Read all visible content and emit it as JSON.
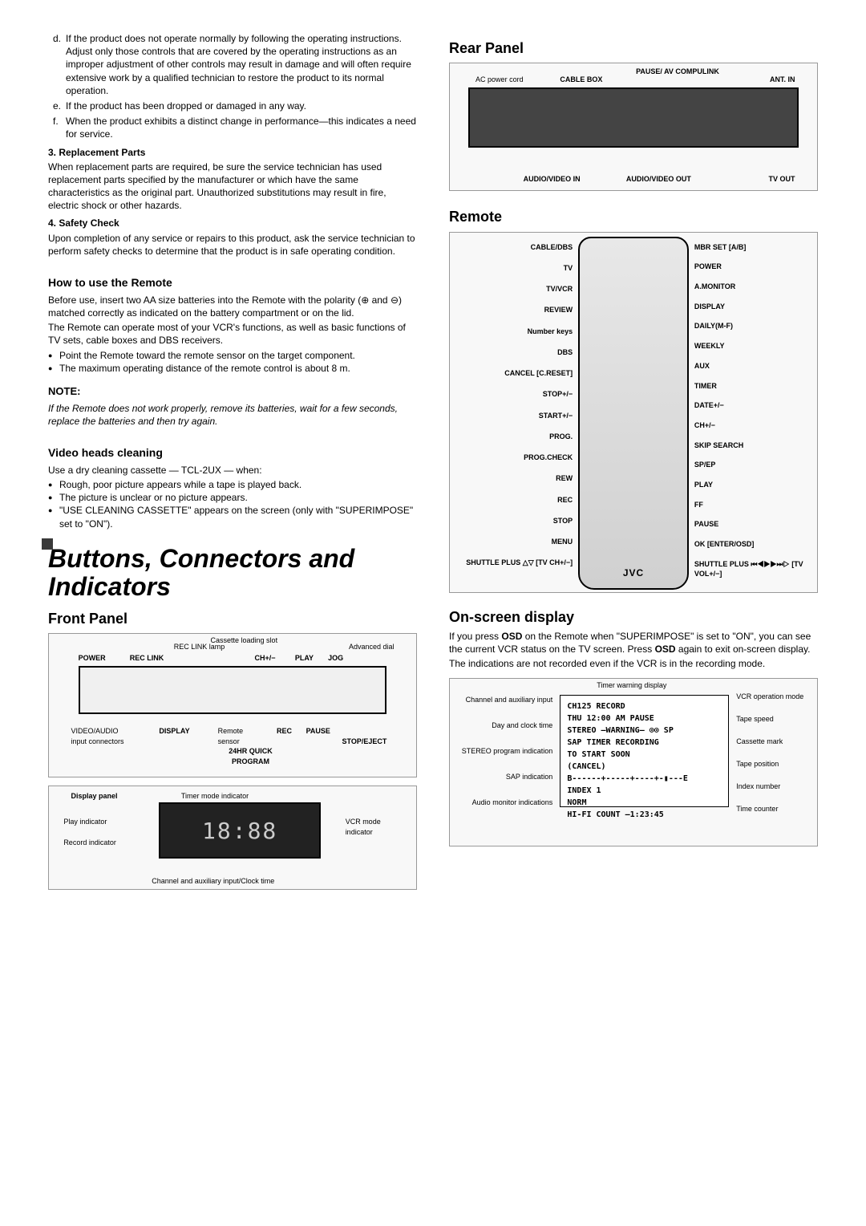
{
  "leftCol": {
    "item_d": "If the product does not operate normally by following the operating instructions. Adjust only those controls that are covered by the operating instructions as an improper adjustment of other controls may result in damage and will often require extensive work by a qualified technician to restore the product to its normal operation.",
    "item_e": "If the product has been dropped or damaged in any way.",
    "item_f": "When the product exhibits a distinct change in performance—this indicates a need for service.",
    "replacement_h": "3.  Replacement Parts",
    "replacement_p": "When replacement parts are required, be sure the service technician has used replacement parts specified by the manufacturer or which have the same characteristics as the original part. Unauthorized substitutions may result in fire, electric shock or other hazards.",
    "safety_h": "4.  Safety Check",
    "safety_p": "Upon completion of any service or repairs to this product, ask the service technician to perform safety checks to determine that the product is in safe operating condition.",
    "remote_h": "How to use the Remote",
    "remote_p1": "Before use, insert two AA size batteries into the Remote with the polarity (⊕ and ⊖) matched correctly as indicated on the battery compartment or on the lid.",
    "remote_p2": "The Remote can operate most of your VCR's functions, as well as basic functions of TV sets, cable boxes and DBS receivers.",
    "remote_b1": "Point the Remote toward the remote sensor on the target component.",
    "remote_b2": "The maximum operating distance of the remote control is about 8 m.",
    "note_h": "NOTE:",
    "note_p": "If the Remote does not work properly, remove its batteries, wait for a few seconds, replace the batteries and then try again.",
    "video_h": "Video heads cleaning",
    "video_p1": "Use a dry cleaning cassette — TCL-2UX — when:",
    "video_b1": "Rough, poor picture appears while a tape is played back.",
    "video_b2": "The picture is unclear or no picture appears.",
    "video_b3": "\"USE CLEANING CASSETTE\" appears on the screen (only with \"SUPERIMPOSE\" set to \"ON\").",
    "bigHeading": "Buttons, Connectors and Indicators",
    "front_h": "Front Panel",
    "frontCallouts": {
      "power": "POWER",
      "reclink": "REC LINK",
      "reclink_lamp": "REC LINK lamp",
      "slot": "Cassette loading slot",
      "ch": "CH+/−",
      "play": "PLAY",
      "jog": "JOG",
      "adv": "Advanced dial",
      "videoaudio": "VIDEO/AUDIO input connectors",
      "display": "DISPLAY",
      "rsensor": "Remote sensor",
      "rec": "REC",
      "pause": "PAUSE",
      "stop": "STOP/EJECT",
      "quick": "24HR QUICK PROGRAM"
    },
    "dispPanel_h": "Display panel",
    "dispCallouts": {
      "timer": "Timer mode indicator",
      "playind": "Play indicator",
      "recind": "Record indicator",
      "vcrmode": "VCR mode indicator",
      "chclock": "Channel and auxiliary input/Clock time"
    }
  },
  "rightCol": {
    "rear_h": "Rear Panel",
    "rearCallouts": {
      "ac": "AC power cord",
      "cable": "CABLE BOX",
      "pause": "PAUSE/ AV COMPULINK",
      "ant": "ANT. IN",
      "avin": "AUDIO/VIDEO IN",
      "avout": "AUDIO/VIDEO OUT",
      "tvout": "TV OUT"
    },
    "remote_h": "Remote",
    "remoteLeft": [
      "CABLE/DBS",
      "TV",
      "TV/VCR",
      "REVIEW",
      "Number keys",
      "DBS",
      "CANCEL [C.RESET]",
      "STOP+/−",
      "START+/−",
      "PROG.",
      "PROG.CHECK",
      "REW",
      "REC",
      "STOP",
      "MENU",
      "SHUTTLE PLUS △▽ [TV CH+/−]"
    ],
    "remoteRight": [
      "MBR SET [A/B]",
      "POWER",
      "A.MONITOR",
      "DISPLAY",
      "DAILY(M-F)",
      "WEEKLY",
      "AUX",
      "TIMER",
      "DATE+/−",
      "CH+/−",
      "SKIP SEARCH",
      "SP/EP",
      "PLAY",
      "FF",
      "PAUSE",
      "OK [ENTER/OSD]",
      "SHUTTLE PLUS ⏮◀▶▶⏭▷ [TV VOL+/−]"
    ],
    "remoteLogo": "JVC",
    "osd_h": "On-screen display",
    "osd_p1a": "If you press ",
    "osd_p1b": "OSD",
    "osd_p1c": " on the Remote when \"SUPERIMPOSE\" is set to \"ON\", you can see the current VCR status on the TV screen. Press ",
    "osd_p1d": "OSD",
    "osd_p1e": " again to exit on-screen display.",
    "osd_p2": "The indications are not recorded even if the VCR is in the recording mode.",
    "osdBox": {
      "l1": "CH125              RECORD",
      "l2": "THU  12:00 AM       PAUSE",
      "l3": "STEREO  –WARNING–  ⊙⊙ SP",
      "l4": "SAP   TIMER RECORDING",
      "l5": "      TO START SOON",
      "l6": "          (CANCEL)",
      "l7": "B------+-----+----+-▮---E",
      "l8": "              INDEX   1",
      "l9": "NORM",
      "l10": "HI-FI    COUNT   –1:23:45"
    },
    "osdLeft": [
      "Channel and auxiliary input",
      "Day and clock time",
      "STEREO program indication",
      "SAP indication",
      "Audio monitor indications"
    ],
    "osdRight": [
      "VCR operation mode",
      "Tape speed",
      "Cassette mark",
      "Tape position",
      "Index number",
      "Time counter"
    ],
    "osdTop": "Timer warning display"
  }
}
